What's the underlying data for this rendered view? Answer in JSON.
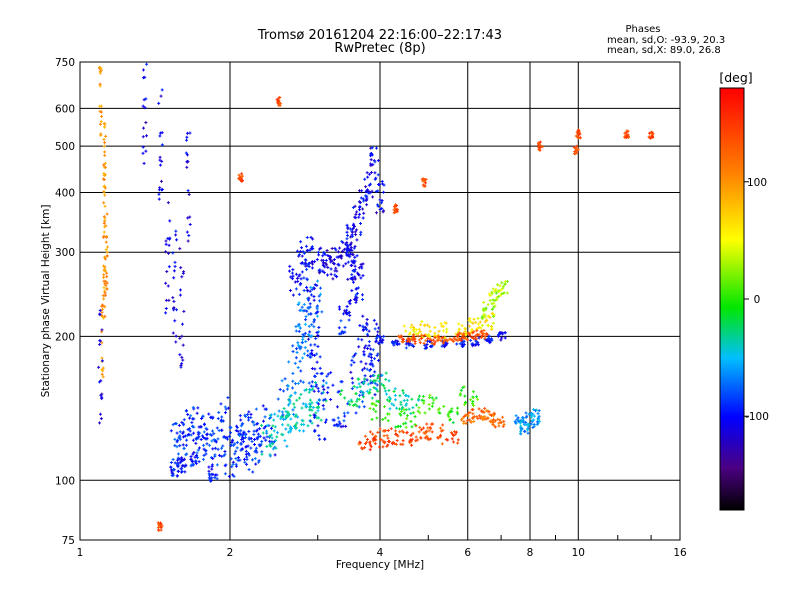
{
  "chart_data": {
    "type": "scatter",
    "title": "Tromsø 20161204 22:16:00–22:17:43",
    "subtitle": "RwPretec (8p)",
    "xlabel": "Frequency [MHz]",
    "ylabel": "Stationary phase Virtual Height [km]",
    "x_scale": "log",
    "y_scale": "log",
    "xlim": [
      1,
      16
    ],
    "ylim": [
      75,
      750
    ],
    "x_ticks": [
      1,
      2,
      4,
      6,
      8,
      10,
      16
    ],
    "x_tick_labels": [
      "1",
      "2",
      "4",
      "6",
      "8",
      "10",
      "16"
    ],
    "y_ticks": [
      75,
      100,
      200,
      300,
      400,
      500,
      600,
      750
    ],
    "y_tick_labels": [
      "75",
      "100",
      "200",
      "300",
      "400",
      "500",
      "600",
      "750"
    ],
    "grid": true,
    "stats": {
      "heading": "Phases",
      "line_o": "mean, sd,O: -93.9, 20.3",
      "line_x": "mean, sd,X:  89.0, 26.8"
    },
    "colorbar": {
      "label": "[deg]",
      "range": [
        -180,
        180
      ],
      "ticks": [
        100,
        0,
        -100
      ],
      "tick_labels": [
        "100",
        "0",
        "-100"
      ]
    },
    "series": [
      {
        "x": [
          1.57,
          1.6,
          1.65,
          1.7,
          1.75,
          1.8,
          1.85,
          1.9,
          1.95,
          2.0,
          2.05,
          2.1,
          2.15,
          2.2,
          2.25,
          2.3,
          2.4
        ],
        "y": [
          120,
          116,
          128,
          132,
          121,
          126,
          118,
          124,
          135,
          112,
          118,
          120,
          127,
          115,
          120,
          130,
          124
        ],
        "phase": -90,
        "spread": [
          0.03,
          0.1
        ]
      },
      {
        "x": [
          1.55,
          1.6,
          1.7,
          1.85
        ],
        "y": [
          106,
          108,
          110,
          103
        ],
        "phase": -95,
        "spread": [
          0.02,
          0.04
        ]
      },
      {
        "x": [
          2.4,
          2.5,
          2.6,
          2.7,
          2.8,
          2.9,
          3.0
        ],
        "y": [
          124,
          128,
          133,
          138,
          140,
          142,
          145
        ],
        "phase": -40,
        "spread": [
          0.04,
          0.1
        ]
      },
      {
        "x": [
          2.6,
          2.7,
          2.8,
          2.85,
          2.9,
          2.95
        ],
        "y": [
          150,
          170,
          190,
          210,
          225,
          245
        ],
        "phase": -70,
        "spread": [
          0.04,
          0.12
        ]
      },
      {
        "x": [
          2.7,
          2.8,
          2.85,
          2.9,
          2.95,
          3.0
        ],
        "y": [
          260,
          280,
          300,
          240,
          195,
          165
        ],
        "phase": -100,
        "spread": [
          0.03,
          0.08
        ]
      },
      {
        "x": [
          3.0,
          3.1,
          3.2,
          3.3,
          3.4,
          3.5,
          3.6
        ],
        "y": [
          290,
          285,
          280,
          292,
          300,
          310,
          280
        ],
        "phase": -110,
        "spread": [
          0.03,
          0.06
        ]
      },
      {
        "x": [
          3.0,
          3.2,
          3.4,
          3.6,
          3.8,
          3.9
        ],
        "y": [
          140,
          145,
          150,
          160,
          175,
          190
        ],
        "phase": -95,
        "spread": [
          0.04,
          0.15
        ]
      },
      {
        "x": [
          3.5,
          3.6,
          3.7,
          3.8,
          3.9,
          4.0
        ],
        "y": [
          320,
          350,
          380,
          420,
          460,
          390
        ],
        "phase": -105,
        "spread": [
          0.02,
          0.08
        ]
      },
      {
        "x": [
          3.4,
          3.5,
          3.6,
          3.7,
          3.8
        ],
        "y": [
          220,
          240,
          260,
          200,
          175
        ],
        "phase": -100,
        "spread": [
          0.03,
          0.1
        ]
      },
      {
        "x": [
          4.0,
          4.3,
          4.6,
          5.0,
          5.4,
          5.8,
          6.2,
          6.6,
          7.0
        ],
        "y": [
          196,
          194,
          193,
          192,
          193,
          194,
          195,
          197,
          200
        ],
        "phase": -100,
        "spread": [
          0.02,
          0.02
        ]
      },
      {
        "x": [
          4.6,
          4.9,
          5.3,
          5.8,
          6.2,
          6.6
        ],
        "y": [
          205,
          207,
          206,
          205,
          210,
          215
        ],
        "phase": 60,
        "spread": [
          0.03,
          0.04
        ]
      },
      {
        "x": [
          6.6,
          6.8,
          7.0
        ],
        "y": [
          225,
          240,
          255
        ],
        "phase": 30,
        "spread": [
          0.03,
          0.05
        ]
      },
      {
        "x": [
          4.5,
          4.8,
          5.2,
          5.6,
          6.0,
          6.4
        ],
        "y": [
          198,
          197,
          196,
          198,
          200,
          202
        ],
        "phase": 135,
        "spread": [
          0.04,
          0.02
        ]
      },
      {
        "x": [
          3.8,
          4.0,
          4.2,
          4.5,
          4.8,
          5.1,
          5.5
        ],
        "y": [
          120,
          122,
          124,
          123,
          125,
          126,
          124
        ],
        "phase": 140,
        "spread": [
          0.05,
          0.04
        ]
      },
      {
        "x": [
          4.0,
          4.5,
          5.0,
          5.5,
          6.0
        ],
        "y": [
          140,
          135,
          145,
          138,
          150
        ],
        "phase": 0,
        "spread": [
          0.05,
          0.05
        ]
      },
      {
        "x": [
          3.5,
          3.8,
          4.0,
          4.3,
          4.6
        ],
        "y": [
          150,
          155,
          160,
          148,
          145
        ],
        "phase": -30,
        "spread": [
          0.05,
          0.05
        ]
      },
      {
        "x": [
          6.0,
          6.3,
          6.6,
          6.9
        ],
        "y": [
          135,
          138,
          136,
          133
        ],
        "phase": 120,
        "spread": [
          0.03,
          0.03
        ]
      },
      {
        "x": [
          7.6,
          7.8,
          8.0,
          8.2
        ],
        "y": [
          132,
          130,
          134,
          136
        ],
        "phase": -60,
        "spread": [
          0.02,
          0.04
        ]
      },
      {
        "x": [
          1.1,
          1.12,
          1.12,
          1.13,
          1.12,
          1.11
        ],
        "y": [
          620,
          470,
          380,
          300,
          240,
          200
        ],
        "phase": 100,
        "spread": [
          0.005,
          0.2
        ]
      },
      {
        "x": [
          1.1,
          1.35,
          1.45,
          1.5,
          1.55,
          1.6,
          1.65
        ],
        "y": [
          170,
          600,
          490,
          300,
          250,
          230,
          420
        ],
        "phase": -110,
        "spread": [
          0.01,
          0.3
        ]
      },
      {
        "x": [
          1.45,
          2.1,
          2.5,
          4.3,
          4.9,
          10.0,
          12.5,
          14.0,
          8.4,
          9.9
        ],
        "y": [
          80,
          430,
          620,
          370,
          420,
          530,
          530,
          525,
          500,
          490
        ],
        "phase": 140,
        "spread": [
          0.01,
          0.02
        ]
      }
    ]
  }
}
